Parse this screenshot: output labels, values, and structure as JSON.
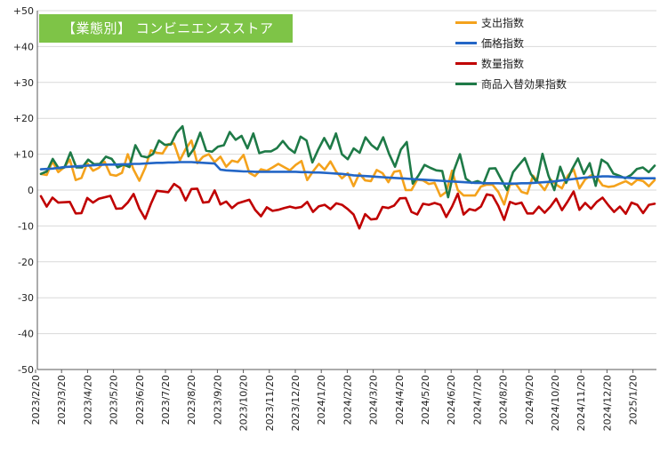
{
  "chart_data": {
    "type": "line",
    "title": "【業態別】 コンビニエンスストア",
    "ylim": [
      -50,
      50
    ],
    "ytick_labels": [
      "+50",
      "+40",
      "+30",
      "+20",
      "+10",
      "0",
      "-10",
      "-20",
      "-30",
      "-40",
      "-50"
    ],
    "ytick_values": [
      50,
      40,
      30,
      20,
      10,
      0,
      -10,
      -20,
      -30,
      -40,
      -50
    ],
    "xtick_labels": [
      "2023/2/20",
      "2023/3/20",
      "2023/4/20",
      "2023/5/20",
      "2023/6/20",
      "2023/7/20",
      "2023/8/20",
      "2023/9/20",
      "2023/10/20",
      "2023/11/20",
      "2023/12/20",
      "2024/1/20",
      "2024/2/20",
      "2024/3/20",
      "2024/4/20",
      "2024/5/20",
      "2024/6/20",
      "2024/7/20",
      "2024/8/20",
      "2024/9/20",
      "2024/10/20",
      "2024/11/20",
      "2024/12/20",
      "2025/1/20"
    ],
    "grid": true,
    "legend_position": "top-right",
    "series": [
      {
        "name": "支出指数",
        "color": "#f4a21c",
        "values": [
          4.5,
          4.2,
          8,
          5,
          6.3,
          8.5,
          2.8,
          3.4,
          7.5,
          5.4,
          6.2,
          7.9,
          4.3,
          4,
          4.8,
          10,
          5.7,
          2.6,
          6.2,
          11.1,
          10.4,
          10.2,
          12.8,
          13,
          8.3,
          11.4,
          13.8,
          7.5,
          9.3,
          10,
          7.8,
          9.3,
          6.5,
          8.2,
          7.8,
          9.8,
          4.8,
          3.9,
          5.8,
          5.4,
          6.3,
          7.3,
          6.4,
          5.5,
          7,
          8.1,
          2.8,
          5.2,
          7.3,
          5.7,
          8,
          5.1,
          3.3,
          4.7,
          1.1,
          4.6,
          2.7,
          2.5,
          5.6,
          4.7,
          2.2,
          5.1,
          5.4,
          0,
          0,
          2.9,
          2.7,
          1.7,
          2,
          -1.7,
          -0.5,
          5.4,
          0,
          -1.5,
          -1.5,
          -1.5,
          1,
          1.5,
          1.5,
          -0.5,
          -4,
          1.5,
          1.8,
          -0.5,
          -1,
          4,
          2,
          0,
          3,
          1.5,
          0.5,
          4,
          5.8,
          0.5,
          3,
          4.1,
          3.5,
          1.3,
          0.9,
          1.1,
          1.8,
          2.5,
          1.5,
          2.9,
          2.5,
          1.1,
          2.8
        ]
      },
      {
        "name": "価格指数",
        "color": "#2366c6",
        "values": [
          5.8,
          5.9,
          6,
          6.2,
          6.4,
          6.5,
          6.6,
          6.7,
          6.8,
          6.9,
          7,
          7.1,
          7.1,
          7.1,
          7.2,
          7.2,
          7.3,
          7.3,
          7.4,
          7.5,
          7.6,
          7.6,
          7.7,
          7.7,
          7.8,
          7.8,
          7.8,
          7.7,
          7.6,
          7.5,
          7.4,
          5.7,
          5.5,
          5.4,
          5.3,
          5.2,
          5.2,
          5.1,
          5.1,
          5.1,
          5.1,
          5.1,
          5.1,
          5.1,
          5.1,
          5,
          5,
          4.9,
          4.9,
          4.8,
          4.7,
          4.6,
          4.5,
          4.3,
          4.1,
          4,
          3.9,
          3.8,
          3.7,
          3.6,
          3.5,
          3.4,
          3.3,
          3.2,
          3.1,
          3,
          2.9,
          2.8,
          2.7,
          2.6,
          2.5,
          2.4,
          2.3,
          2.2,
          2.1,
          2,
          2,
          1.9,
          1.9,
          1.9,
          1.8,
          1.8,
          1.8,
          1.9,
          1.9,
          2,
          2.1,
          2.2,
          2.3,
          2.5,
          2.7,
          2.9,
          3.1,
          3.3,
          3.5,
          3.6,
          3.7,
          3.8,
          3.8,
          3.7,
          3.6,
          3.5,
          3.4,
          3.3,
          3.3,
          3.3,
          3.3
        ]
      },
      {
        "name": "数量指数",
        "color": "#c00000",
        "values": [
          -1.7,
          -4.6,
          -2.1,
          -3.5,
          -3.4,
          -3.3,
          -6.5,
          -6.4,
          -2.2,
          -3.5,
          -2.4,
          -2,
          -1.6,
          -5.2,
          -5.1,
          -3.5,
          -1.1,
          -5.2,
          -8,
          -3.8,
          -0.2,
          -0.4,
          -0.6,
          1.7,
          0.6,
          -2.9,
          0.3,
          0.4,
          -3.5,
          -3.3,
          -0.1,
          -4,
          -3.2,
          -5,
          -3.7,
          -3.2,
          -2.7,
          -5.5,
          -7.3,
          -4.8,
          -5.8,
          -5.5,
          -5,
          -4.6,
          -5,
          -4.7,
          -3.3,
          -6.1,
          -4.5,
          -4.1,
          -5.3,
          -3.7,
          -4.1,
          -5.3,
          -6.8,
          -10.7,
          -6.7,
          -8.2,
          -8,
          -4.7,
          -5,
          -4.3,
          -2.3,
          -2.2,
          -6.1,
          -6.8,
          -3.8,
          -4.1,
          -3.6,
          -4.1,
          -7.5,
          -4.6,
          -1,
          -6.8,
          -5.3,
          -5.7,
          -4.6,
          -1.2,
          -1.5,
          -4.4,
          -8.3,
          -3.3,
          -3.9,
          -3.5,
          -6.5,
          -6.5,
          -4.6,
          -6.3,
          -4.6,
          -2.4,
          -5.6,
          -3.1,
          -0.4,
          -5.5,
          -3.6,
          -5.2,
          -3.3,
          -2.1,
          -4.2,
          -6.1,
          -4.6,
          -6.6,
          -3.5,
          -4.1,
          -6.4,
          -4.1,
          -3.8
        ]
      },
      {
        "name": "商品入替効果指数",
        "color": "#1e7a47",
        "values": [
          4.5,
          5.2,
          8.7,
          6.1,
          6.3,
          10.5,
          6.3,
          6.3,
          8.5,
          7.2,
          7.3,
          9.3,
          8.7,
          6.3,
          7.1,
          6.4,
          12.5,
          9.5,
          9.1,
          10.1,
          13.8,
          12.6,
          12.7,
          16,
          17.8,
          9.4,
          11.7,
          16,
          11,
          10.7,
          12.1,
          12.5,
          16.2,
          14,
          15.1,
          11.6,
          15.8,
          10.3,
          10.8,
          10.8,
          11.7,
          13.7,
          11.6,
          10.4,
          14.9,
          13.8,
          7.7,
          11.3,
          14.5,
          11.5,
          15.8,
          10,
          8.6,
          11.6,
          10.4,
          14.7,
          12.6,
          11.3,
          14.7,
          10.1,
          6.5,
          11.3,
          13.4,
          1.8,
          4.1,
          7,
          6.2,
          5.5,
          5.3,
          -2,
          5.5,
          10,
          3.2,
          2,
          2.5,
          1.8,
          6,
          6.1,
          3,
          0,
          5,
          7,
          8.9,
          4.5,
          2.2,
          10.1,
          4,
          0,
          6.5,
          2,
          5.8,
          8.8,
          4.5,
          7.5,
          1.2,
          8.5,
          7.4,
          4.6,
          4,
          3.3,
          4.2,
          5.9,
          6.3,
          5,
          6.8
        ]
      }
    ]
  }
}
